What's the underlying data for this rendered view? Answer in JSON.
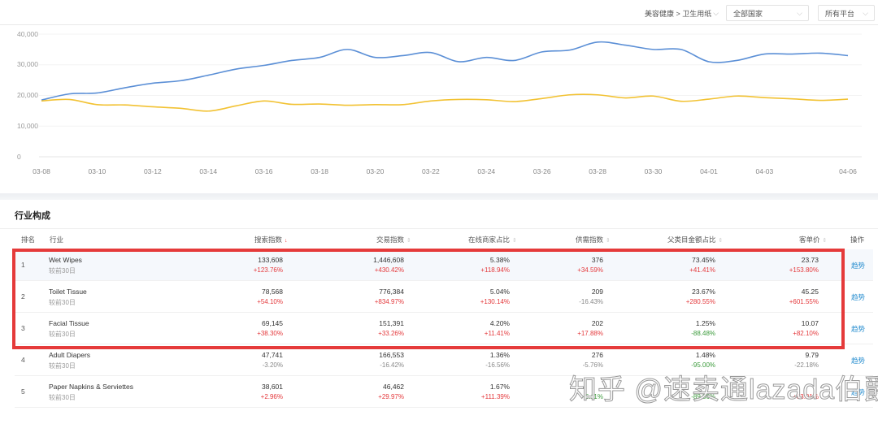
{
  "filters": {
    "category_path": "美容健康 > 卫生用纸",
    "country": "全部国家",
    "platform": "所有平台"
  },
  "chart_data": {
    "type": "line",
    "title": "",
    "xlabel": "",
    "ylabel": "",
    "ylim": [
      0,
      40000
    ],
    "yticks": [
      "40,000",
      "30,000",
      "20,000",
      "10,000",
      "0"
    ],
    "grid": true,
    "x_tick_labels": [
      "03-08",
      "03-10",
      "03-12",
      "03-14",
      "03-16",
      "03-18",
      "03-20",
      "03-22",
      "03-24",
      "03-26",
      "03-28",
      "03-30",
      "04-01",
      "04-03",
      "04-06"
    ],
    "x": [
      "03-08",
      "03-09",
      "03-10",
      "03-11",
      "03-12",
      "03-13",
      "03-14",
      "03-15",
      "03-16",
      "03-17",
      "03-18",
      "03-19",
      "03-20",
      "03-21",
      "03-22",
      "03-23",
      "03-24",
      "03-25",
      "03-26",
      "03-27",
      "03-28",
      "03-29",
      "03-30",
      "03-31",
      "04-01",
      "04-02",
      "04-03",
      "04-04",
      "04-05",
      "04-06"
    ],
    "series": [
      {
        "name": "blue-series",
        "color": "#5b8fd6",
        "values": [
          18500,
          20500,
          20800,
          22500,
          24000,
          24800,
          26600,
          28600,
          29800,
          31400,
          32400,
          35000,
          32400,
          33000,
          34000,
          31000,
          32400,
          31400,
          34200,
          34800,
          37400,
          36400,
          35000,
          35000,
          31000,
          31400,
          33500,
          33500,
          33800,
          33000
        ]
      },
      {
        "name": "yellow-series",
        "color": "#f2c233",
        "values": [
          18200,
          18700,
          17000,
          16900,
          16300,
          15800,
          14900,
          16600,
          18200,
          17100,
          17200,
          16800,
          17000,
          17000,
          18200,
          18700,
          18600,
          18000,
          19000,
          20200,
          20200,
          19200,
          19800,
          18100,
          18800,
          19800,
          19300,
          18900,
          18400,
          18800
        ]
      }
    ]
  },
  "section": {
    "title": "行业构成"
  },
  "table": {
    "headers": {
      "rank": "排名",
      "industry": "行业",
      "search_index": "搜索指数",
      "trade_index": "交易指数",
      "online_seller_ratio": "在线商家占比",
      "supply_demand_index": "供需指数",
      "parent_amount_ratio": "父类目金额占比",
      "avg_order_price": "客单价",
      "action": "操作"
    },
    "sort_icons": {
      "active": "↓",
      "inactive": "⇕"
    },
    "compare_label": "较前30日",
    "action_label": "趋势",
    "rows": [
      {
        "rank": "1",
        "industry": "Wet Wipes",
        "search_index": "133,608",
        "search_change": "+123.76%",
        "trade_index": "1,446,608",
        "trade_change": "+430.42%",
        "online_seller_ratio": "5.38%",
        "online_seller_change": "+118.94%",
        "supply_demand_index": "376",
        "supply_demand_change": "+34.59%",
        "parent_amount_ratio": "73.45%",
        "parent_amount_change": "+41.41%",
        "avg_order_price": "23.73",
        "avg_order_change": "+153.80%"
      },
      {
        "rank": "2",
        "industry": "Toilet Tissue",
        "search_index": "78,568",
        "search_change": "+54.10%",
        "trade_index": "776,384",
        "trade_change": "+834.97%",
        "online_seller_ratio": "5.04%",
        "online_seller_change": "+130.14%",
        "supply_demand_index": "209",
        "supply_demand_change": "-16.43%",
        "parent_amount_ratio": "23.67%",
        "parent_amount_change": "+280.55%",
        "avg_order_price": "45.25",
        "avg_order_change": "+601.55%"
      },
      {
        "rank": "3",
        "industry": "Facial Tissue",
        "search_index": "69,145",
        "search_change": "+38.30%",
        "trade_index": "151,391",
        "trade_change": "+33.26%",
        "online_seller_ratio": "4.20%",
        "online_seller_change": "+11.41%",
        "supply_demand_index": "202",
        "supply_demand_change": "+17.88%",
        "parent_amount_ratio": "1.25%",
        "parent_amount_change": "-88.48%",
        "avg_order_price": "10.07",
        "avg_order_change": "+82.10%"
      },
      {
        "rank": "4",
        "industry": "Adult Diapers",
        "search_index": "47,741",
        "search_change": "-3.20%",
        "trade_index": "166,553",
        "trade_change": "-16.42%",
        "online_seller_ratio": "1.36%",
        "online_seller_change": "-16.56%",
        "supply_demand_index": "276",
        "supply_demand_change": "-5.76%",
        "parent_amount_ratio": "1.48%",
        "parent_amount_change": "-95.00%",
        "avg_order_price": "9.79",
        "avg_order_change": "-22.18%"
      },
      {
        "rank": "5",
        "industry": "Paper Napkins & Serviettes",
        "search_index": "38,601",
        "search_change": "+2.96%",
        "trade_index": "46,462",
        "trade_change": "+29.97%",
        "online_seller_ratio": "1.67%",
        "online_seller_change": "+111.39%",
        "supply_demand_index": "",
        "supply_demand_change": "-6.11%",
        "parent_amount_ratio": "",
        "parent_amount_change": "-89.36%",
        "avg_order_price": "",
        "avg_order_change": "+83.01%"
      }
    ]
  },
  "watermark": "知乎 @速卖通lazada伯爵",
  "colors": {
    "highlight_frame": "#e53a3a",
    "positive": "#e4393c",
    "negative_green": "#3a9a3a",
    "link": "#2a8fd0",
    "blue_series": "#5b8fd6",
    "yellow_series": "#f2c233"
  }
}
